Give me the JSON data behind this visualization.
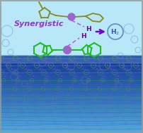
{
  "bg_sky_color": "#b8e8f8",
  "bg_water_top": "#88ccee",
  "bg_water_bottom": "#1040a0",
  "synergistic_color": "#9933cc",
  "title": "Synergistic",
  "cu_color": "#9966cc",
  "ligand_top_color": "#888822",
  "ligand_bottom_color": "#22bb22",
  "dashed_color": "#cc44cc",
  "arrow_color": "#7700cc",
  "h2_circle_color": "#6688cc",
  "h_color": "#660099",
  "chain_green": "#44aa44",
  "chain_blue": "#4455bb",
  "chain_node_color": "#7755bb",
  "bubble_edge_color": "#6677cc",
  "border_color": "#aaaaaa"
}
